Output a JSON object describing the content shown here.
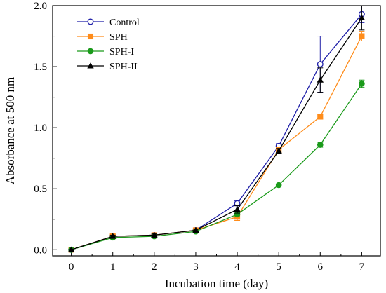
{
  "chart_data": {
    "type": "line",
    "xlabel": "Incubation time (day)",
    "ylabel": "Absorbance at 500 nm",
    "x": [
      0,
      1,
      2,
      3,
      4,
      5,
      6,
      7
    ],
    "xlim": [
      -0.45,
      7.45
    ],
    "ylim": [
      -0.05,
      2.0
    ],
    "xticks": [
      "0",
      "1",
      "2",
      "3",
      "4",
      "5",
      "6",
      "7"
    ],
    "yticks": [
      "0.0",
      "0.5",
      "1.0",
      "1.5",
      "2.0"
    ],
    "ytick_values": [
      0.0,
      0.5,
      1.0,
      1.5,
      2.0
    ],
    "grid": false,
    "legend_position": "top-left",
    "series": [
      {
        "name": "Control",
        "color": "#1f1fa8",
        "marker": "open-circle",
        "values": [
          0.0,
          0.11,
          0.12,
          0.16,
          0.38,
          0.85,
          1.52,
          1.93
        ],
        "errors": [
          0.0,
          0.01,
          0.01,
          0.01,
          0.02,
          0.02,
          0.23,
          0.07
        ]
      },
      {
        "name": "SPH",
        "color": "#ff8c1a",
        "marker": "square",
        "values": [
          0.0,
          0.11,
          0.12,
          0.16,
          0.27,
          0.82,
          1.09,
          1.75
        ],
        "errors": [
          0.0,
          0.01,
          0.01,
          0.01,
          0.03,
          0.02,
          0.02,
          0.04
        ]
      },
      {
        "name": "SPH-I",
        "color": "#1a9a1a",
        "marker": "circle",
        "values": [
          0.0,
          0.1,
          0.11,
          0.15,
          0.29,
          0.53,
          0.86,
          1.36
        ],
        "errors": [
          0.0,
          0.01,
          0.01,
          0.01,
          0.02,
          0.01,
          0.02,
          0.03
        ]
      },
      {
        "name": "SPH-II",
        "color": "#000000",
        "marker": "triangle",
        "values": [
          0.0,
          0.11,
          0.12,
          0.16,
          0.33,
          0.81,
          1.39,
          1.9
        ],
        "errors": [
          0.0,
          0.01,
          0.01,
          0.01,
          0.03,
          0.02,
          0.1,
          0.1
        ]
      }
    ]
  }
}
